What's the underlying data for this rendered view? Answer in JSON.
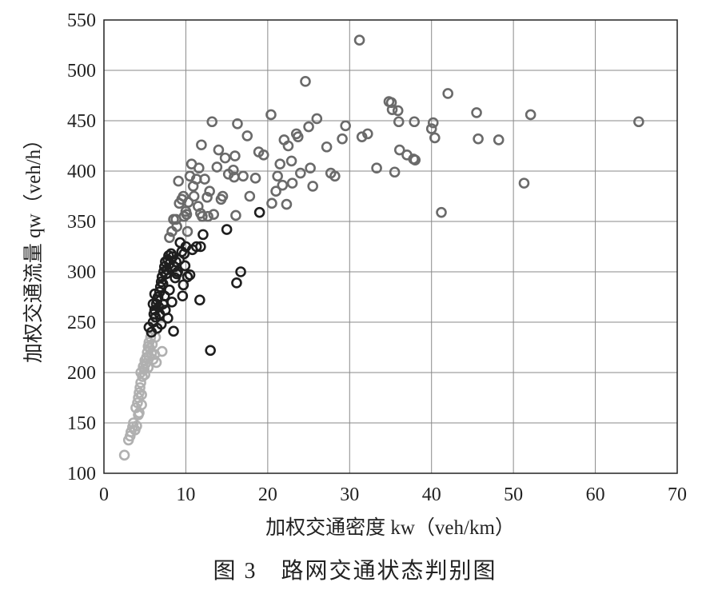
{
  "caption": "图 3　路网交通状态判别图",
  "chart_data": {
    "type": "scatter",
    "title": "",
    "xlabel": "加权交通密度 kw（veh/km）",
    "ylabel": "加权交通流量 qw（veh/h）",
    "xlim": [
      0,
      70
    ],
    "ylim": [
      100,
      550
    ],
    "x_ticks": [
      0,
      10,
      20,
      30,
      40,
      50,
      60,
      70
    ],
    "y_ticks": [
      100,
      150,
      200,
      250,
      300,
      350,
      400,
      450,
      500,
      550
    ],
    "grid": true,
    "legend": "none",
    "marker": "open-circle",
    "series": [
      {
        "color": "#b0b0b0",
        "points": [
          [
            2.5,
            118
          ],
          [
            3.0,
            133
          ],
          [
            3.2,
            137
          ],
          [
            3.3,
            141
          ],
          [
            3.5,
            146
          ],
          [
            3.6,
            150
          ],
          [
            3.8,
            143
          ],
          [
            4.0,
            147
          ],
          [
            3.9,
            165
          ],
          [
            4.1,
            170
          ],
          [
            4.2,
            175
          ],
          [
            4.3,
            180
          ],
          [
            4.4,
            185
          ],
          [
            4.5,
            190
          ],
          [
            4.6,
            178
          ],
          [
            4.7,
            196
          ],
          [
            4.5,
            200
          ],
          [
            4.8,
            206
          ],
          [
            4.9,
            203
          ],
          [
            5.0,
            212
          ],
          [
            5.1,
            209
          ],
          [
            5.2,
            215
          ],
          [
            5.3,
            220
          ],
          [
            5.4,
            226
          ],
          [
            5.5,
            230
          ],
          [
            5.6,
            224
          ],
          [
            5.7,
            235
          ],
          [
            5.8,
            219
          ],
          [
            6.0,
            213
          ],
          [
            6.2,
            218
          ],
          [
            6.4,
            210
          ],
          [
            5.4,
            205
          ],
          [
            5.0,
            198
          ],
          [
            4.3,
            160
          ],
          [
            4.6,
            168
          ],
          [
            4.2,
            158
          ],
          [
            5.9,
            228
          ],
          [
            6.3,
            235
          ],
          [
            7.1,
            221
          ],
          [
            5.5,
            216
          ]
        ]
      },
      {
        "color": "#1e1e1e",
        "points": [
          [
            5.5,
            245
          ],
          [
            5.8,
            240
          ],
          [
            6.0,
            250
          ],
          [
            6.1,
            258
          ],
          [
            6.2,
            262
          ],
          [
            6.3,
            255
          ],
          [
            6.4,
            268
          ],
          [
            6.5,
            272
          ],
          [
            6.6,
            275
          ],
          [
            6.7,
            265
          ],
          [
            6.8,
            280
          ],
          [
            6.9,
            285
          ],
          [
            7.0,
            290
          ],
          [
            7.1,
            295
          ],
          [
            7.2,
            288
          ],
          [
            7.3,
            300
          ],
          [
            7.4,
            305
          ],
          [
            7.5,
            310
          ],
          [
            7.6,
            298
          ],
          [
            7.7,
            302
          ],
          [
            7.8,
            312
          ],
          [
            7.9,
            316
          ],
          [
            8.0,
            308
          ],
          [
            8.2,
            318
          ],
          [
            8.4,
            315
          ],
          [
            8.6,
            305
          ],
          [
            8.8,
            310
          ],
          [
            9.0,
            300
          ],
          [
            9.2,
            312
          ],
          [
            9.5,
            320
          ],
          [
            9.8,
            318
          ],
          [
            10.0,
            325
          ],
          [
            10.2,
            295
          ],
          [
            10.5,
            297
          ],
          [
            9.7,
            287
          ],
          [
            9.6,
            276
          ],
          [
            8.7,
            294
          ],
          [
            8.0,
            282
          ],
          [
            7.5,
            262
          ],
          [
            7.2,
            268
          ],
          [
            6.8,
            258
          ],
          [
            7.0,
            248
          ],
          [
            6.5,
            244
          ],
          [
            8.3,
            270
          ],
          [
            8.5,
            241
          ],
          [
            7.8,
            254
          ],
          [
            11.3,
            325
          ],
          [
            11.8,
            325
          ],
          [
            12.1,
            337
          ],
          [
            11.7,
            272
          ],
          [
            13.0,
            222
          ],
          [
            15.0,
            342
          ],
          [
            16.2,
            289
          ],
          [
            16.7,
            300
          ],
          [
            19.0,
            359
          ],
          [
            10.8,
            322
          ],
          [
            9.3,
            329
          ],
          [
            6.2,
            278
          ],
          [
            6.0,
            268
          ],
          [
            7.4,
            276
          ],
          [
            8.9,
            298
          ],
          [
            9.9,
            306
          ]
        ]
      },
      {
        "color": "#6a6a6a",
        "points": [
          [
            8.0,
            334
          ],
          [
            8.3,
            340
          ],
          [
            8.5,
            352
          ],
          [
            8.9,
            345
          ],
          [
            9.2,
            368
          ],
          [
            9.5,
            372
          ],
          [
            9.8,
            355
          ],
          [
            10.0,
            360
          ],
          [
            10.2,
            340
          ],
          [
            10.5,
            395
          ],
          [
            10.7,
            407
          ],
          [
            10.9,
            385
          ],
          [
            11.0,
            375
          ],
          [
            11.3,
            392
          ],
          [
            11.5,
            365
          ],
          [
            11.8,
            358
          ],
          [
            12.0,
            355
          ],
          [
            12.3,
            392
          ],
          [
            12.7,
            355
          ],
          [
            11.9,
            426
          ],
          [
            13.2,
            449
          ],
          [
            14.0,
            421
          ],
          [
            14.5,
            375
          ],
          [
            14.8,
            413
          ],
          [
            15.2,
            397
          ],
          [
            15.8,
            401
          ],
          [
            16.0,
            415
          ],
          [
            16.1,
            356
          ],
          [
            16.3,
            447
          ],
          [
            17.0,
            395
          ],
          [
            17.5,
            435
          ],
          [
            17.8,
            375
          ],
          [
            18.5,
            393
          ],
          [
            18.9,
            419
          ],
          [
            19.5,
            416
          ],
          [
            20.4,
            456
          ],
          [
            20.5,
            368
          ],
          [
            21.0,
            380
          ],
          [
            21.2,
            395
          ],
          [
            21.5,
            407
          ],
          [
            21.8,
            386
          ],
          [
            22.0,
            431
          ],
          [
            22.3,
            367
          ],
          [
            22.5,
            425
          ],
          [
            22.9,
            410
          ],
          [
            23.0,
            388
          ],
          [
            23.5,
            437
          ],
          [
            23.7,
            434
          ],
          [
            24.0,
            398
          ],
          [
            24.6,
            489
          ],
          [
            25.0,
            444
          ],
          [
            25.2,
            403
          ],
          [
            25.5,
            385
          ],
          [
            26.0,
            452
          ],
          [
            27.2,
            424
          ],
          [
            27.7,
            398
          ],
          [
            28.2,
            395
          ],
          [
            29.1,
            432
          ],
          [
            29.5,
            445
          ],
          [
            31.2,
            530
          ],
          [
            31.5,
            434
          ],
          [
            32.2,
            437
          ],
          [
            33.3,
            403
          ],
          [
            34.8,
            469
          ],
          [
            35.1,
            468
          ],
          [
            35.2,
            461
          ],
          [
            35.5,
            399
          ],
          [
            35.9,
            460
          ],
          [
            36.0,
            449
          ],
          [
            36.1,
            421
          ],
          [
            37.0,
            416
          ],
          [
            37.8,
            412
          ],
          [
            37.9,
            449
          ],
          [
            38.0,
            411
          ],
          [
            40.0,
            442
          ],
          [
            40.2,
            448
          ],
          [
            40.4,
            433
          ],
          [
            41.2,
            359
          ],
          [
            42.0,
            477
          ],
          [
            45.5,
            458
          ],
          [
            45.7,
            432
          ],
          [
            48.2,
            431
          ],
          [
            51.3,
            388
          ],
          [
            52.1,
            456
          ],
          [
            65.3,
            449
          ],
          [
            9.1,
            390
          ],
          [
            9.7,
            375
          ],
          [
            10.3,
            369
          ],
          [
            10.1,
            357
          ],
          [
            12.6,
            374
          ],
          [
            13.4,
            357
          ],
          [
            14.3,
            372
          ],
          [
            15.9,
            394
          ],
          [
            12.9,
            380
          ],
          [
            8.8,
            352
          ],
          [
            11.6,
            403
          ],
          [
            13.8,
            404
          ]
        ]
      }
    ]
  }
}
